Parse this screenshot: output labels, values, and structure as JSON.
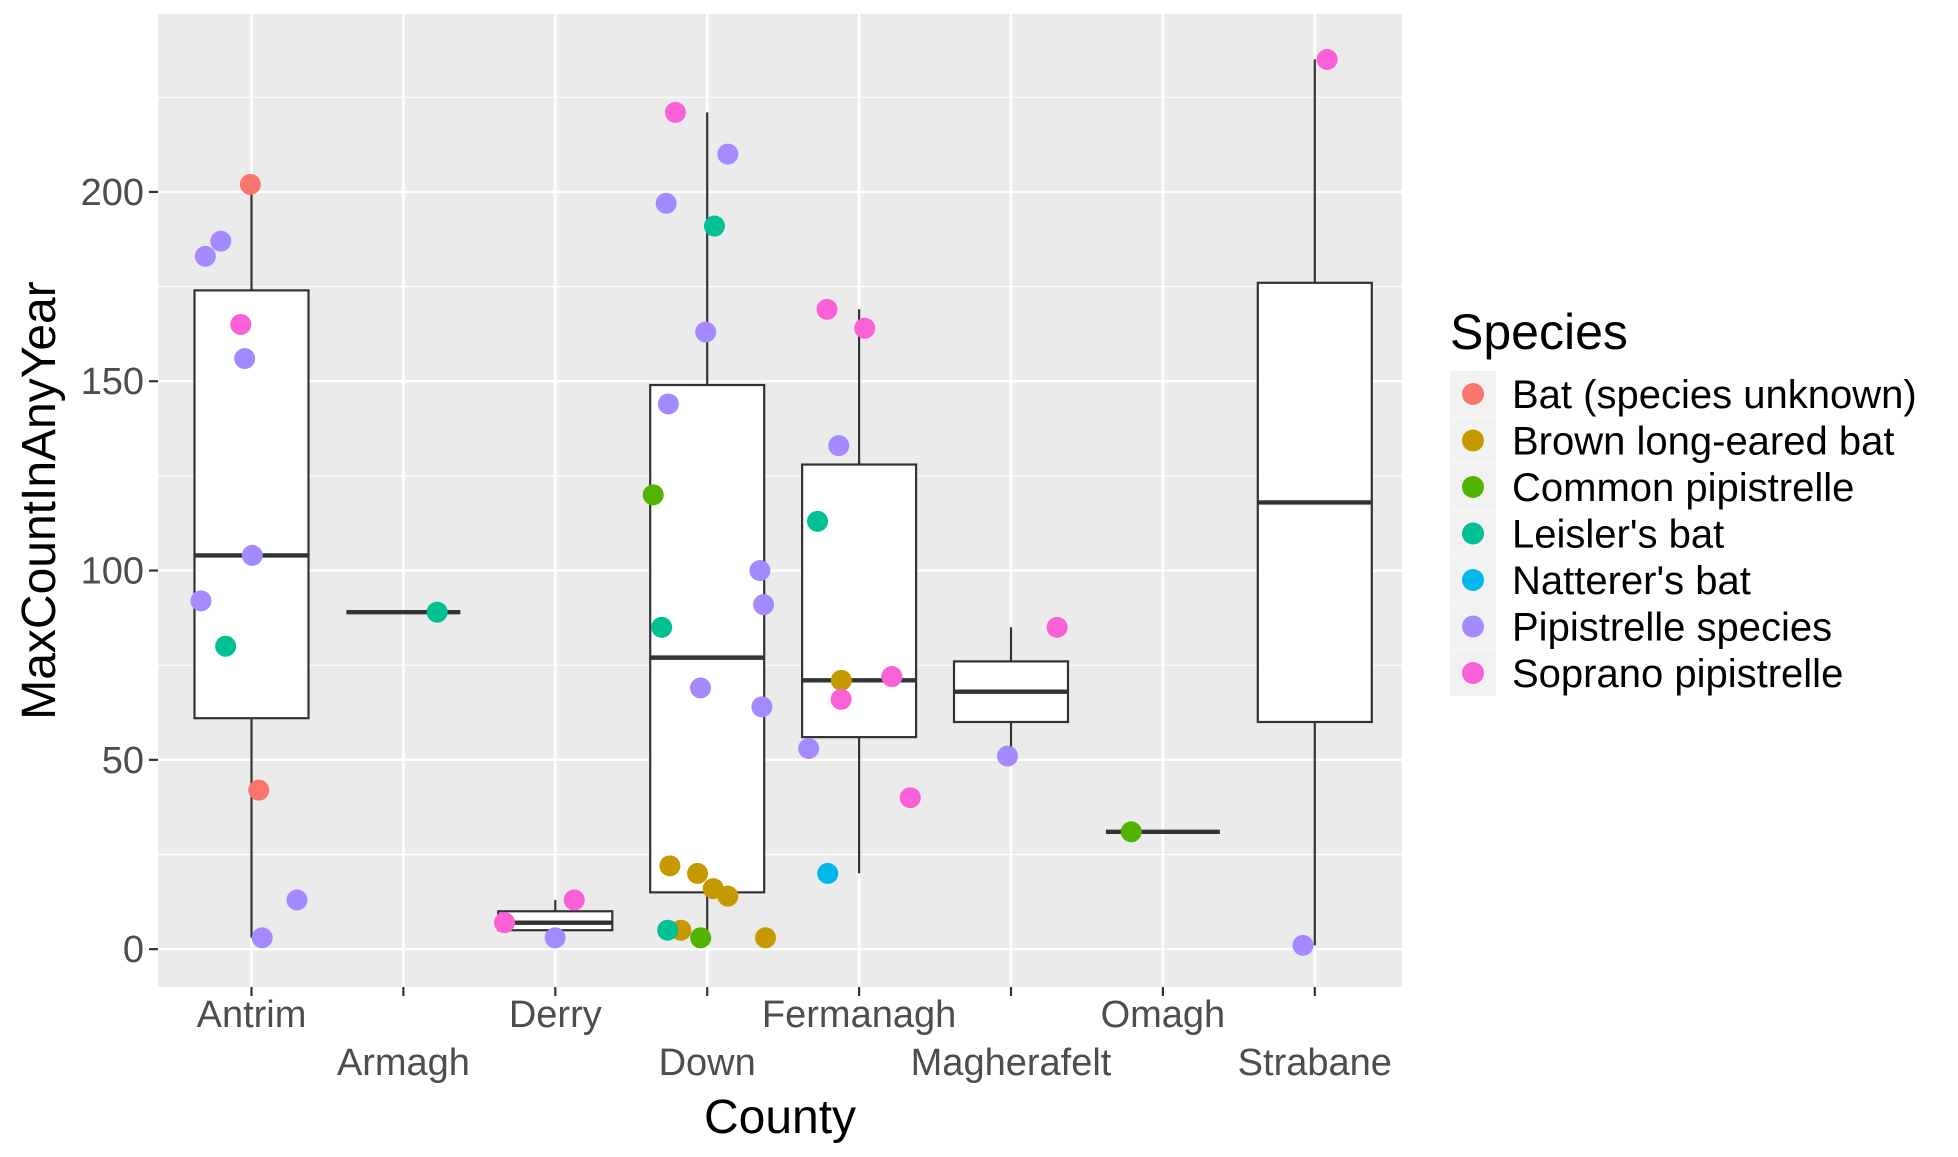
{
  "chart_data": {
    "type": "box",
    "xlabel": "County",
    "ylabel": "MaxCountInAnyYear",
    "ylim": [
      -10,
      247
    ],
    "yticks": [
      0,
      50,
      100,
      150,
      200
    ],
    "grid": true,
    "legend": {
      "title": "Species",
      "position": "right"
    },
    "categories": [
      "Antrim",
      "Armagh",
      "Derry",
      "Down",
      "Fermanagh",
      "Magherafelt",
      "Omagh",
      "Strabane"
    ],
    "species": [
      {
        "name": "Bat (species unknown)",
        "color": "#F8766D"
      },
      {
        "name": "Brown long-eared bat",
        "color": "#C49A00"
      },
      {
        "name": "Common pipistrelle",
        "color": "#53B400"
      },
      {
        "name": "Leisler's bat",
        "color": "#00C094"
      },
      {
        "name": "Natterer's bat",
        "color": "#00B6EB"
      },
      {
        "name": "Pipistrelle species",
        "color": "#A58AFF"
      },
      {
        "name": "Soprano pipistrelle",
        "color": "#FB61D7"
      }
    ],
    "boxes": [
      {
        "county": "Antrim",
        "min": 3,
        "q1": 61,
        "median": 104,
        "q3": 174,
        "max": 202
      },
      {
        "county": "Armagh",
        "min": 89,
        "q1": 89,
        "median": 89,
        "q3": 89,
        "max": 89
      },
      {
        "county": "Derry",
        "min": 3,
        "q1": 5,
        "median": 7,
        "q3": 10,
        "max": 13
      },
      {
        "county": "Down",
        "min": 3,
        "q1": 15,
        "median": 77,
        "q3": 149,
        "max": 221
      },
      {
        "county": "Fermanagh",
        "min": 20,
        "q1": 56,
        "median": 71,
        "q3": 128,
        "max": 169
      },
      {
        "county": "Magherafelt",
        "min": 51,
        "q1": 60,
        "median": 68,
        "q3": 76,
        "max": 85
      },
      {
        "county": "Omagh",
        "min": 31,
        "q1": 31,
        "median": 31,
        "q3": 31,
        "max": 31
      },
      {
        "county": "Strabane",
        "min": 1,
        "q1": 60,
        "median": 118,
        "q3": 176,
        "max": 235
      }
    ],
    "points": [
      {
        "county": "Antrim",
        "species": "Bat (species unknown)",
        "y": 202
      },
      {
        "county": "Antrim",
        "species": "Bat (species unknown)",
        "y": 42
      },
      {
        "county": "Antrim",
        "species": "Pipistrelle species",
        "y": 183
      },
      {
        "county": "Antrim",
        "species": "Pipistrelle species",
        "y": 187
      },
      {
        "county": "Antrim",
        "species": "Pipistrelle species",
        "y": 156
      },
      {
        "county": "Antrim",
        "species": "Pipistrelle species",
        "y": 104
      },
      {
        "county": "Antrim",
        "species": "Pipistrelle species",
        "y": 92
      },
      {
        "county": "Antrim",
        "species": "Pipistrelle species",
        "y": 13
      },
      {
        "county": "Antrim",
        "species": "Pipistrelle species",
        "y": 3
      },
      {
        "county": "Antrim",
        "species": "Soprano pipistrelle",
        "y": 165
      },
      {
        "county": "Antrim",
        "species": "Leisler's bat",
        "y": 80
      },
      {
        "county": "Armagh",
        "species": "Leisler's bat",
        "y": 89
      },
      {
        "county": "Derry",
        "species": "Soprano pipistrelle",
        "y": 13
      },
      {
        "county": "Derry",
        "species": "Soprano pipistrelle",
        "y": 7
      },
      {
        "county": "Derry",
        "species": "Pipistrelle species",
        "y": 3
      },
      {
        "county": "Down",
        "species": "Soprano pipistrelle",
        "y": 221
      },
      {
        "county": "Down",
        "species": "Pipistrelle species",
        "y": 210
      },
      {
        "county": "Down",
        "species": "Pipistrelle species",
        "y": 197
      },
      {
        "county": "Down",
        "species": "Leisler's bat",
        "y": 191
      },
      {
        "county": "Down",
        "species": "Pipistrelle species",
        "y": 163
      },
      {
        "county": "Down",
        "species": "Pipistrelle species",
        "y": 144
      },
      {
        "county": "Down",
        "species": "Common pipistrelle",
        "y": 120
      },
      {
        "county": "Down",
        "species": "Pipistrelle species",
        "y": 100
      },
      {
        "county": "Down",
        "species": "Pipistrelle species",
        "y": 91
      },
      {
        "county": "Down",
        "species": "Leisler's bat",
        "y": 85
      },
      {
        "county": "Down",
        "species": "Pipistrelle species",
        "y": 69
      },
      {
        "county": "Down",
        "species": "Pipistrelle species",
        "y": 64
      },
      {
        "county": "Down",
        "species": "Brown long-eared bat",
        "y": 22
      },
      {
        "county": "Down",
        "species": "Brown long-eared bat",
        "y": 20
      },
      {
        "county": "Down",
        "species": "Brown long-eared bat",
        "y": 16
      },
      {
        "county": "Down",
        "species": "Brown long-eared bat",
        "y": 14
      },
      {
        "county": "Down",
        "species": "Brown long-eared bat",
        "y": 5
      },
      {
        "county": "Down",
        "species": "Leisler's bat",
        "y": 5
      },
      {
        "county": "Down",
        "species": "Brown long-eared bat",
        "y": 3
      },
      {
        "county": "Down",
        "species": "Common pipistrelle",
        "y": 3
      },
      {
        "county": "Fermanagh",
        "species": "Soprano pipistrelle",
        "y": 169
      },
      {
        "county": "Fermanagh",
        "species": "Soprano pipistrelle",
        "y": 164
      },
      {
        "county": "Fermanagh",
        "species": "Pipistrelle species",
        "y": 133
      },
      {
        "county": "Fermanagh",
        "species": "Leisler's bat",
        "y": 113
      },
      {
        "county": "Fermanagh",
        "species": "Soprano pipistrelle",
        "y": 72
      },
      {
        "county": "Fermanagh",
        "species": "Brown long-eared bat",
        "y": 71
      },
      {
        "county": "Fermanagh",
        "species": "Soprano pipistrelle",
        "y": 66
      },
      {
        "county": "Fermanagh",
        "species": "Pipistrelle species",
        "y": 53
      },
      {
        "county": "Fermanagh",
        "species": "Soprano pipistrelle",
        "y": 40
      },
      {
        "county": "Fermanagh",
        "species": "Natterer's bat",
        "y": 20
      },
      {
        "county": "Magherafelt",
        "species": "Soprano pipistrelle",
        "y": 85
      },
      {
        "county": "Magherafelt",
        "species": "Pipistrelle species",
        "y": 51
      },
      {
        "county": "Omagh",
        "species": "Common pipistrelle",
        "y": 31
      },
      {
        "county": "Strabane",
        "species": "Soprano pipistrelle",
        "y": 235
      },
      {
        "county": "Strabane",
        "species": "Pipistrelle species",
        "y": 1
      }
    ]
  }
}
